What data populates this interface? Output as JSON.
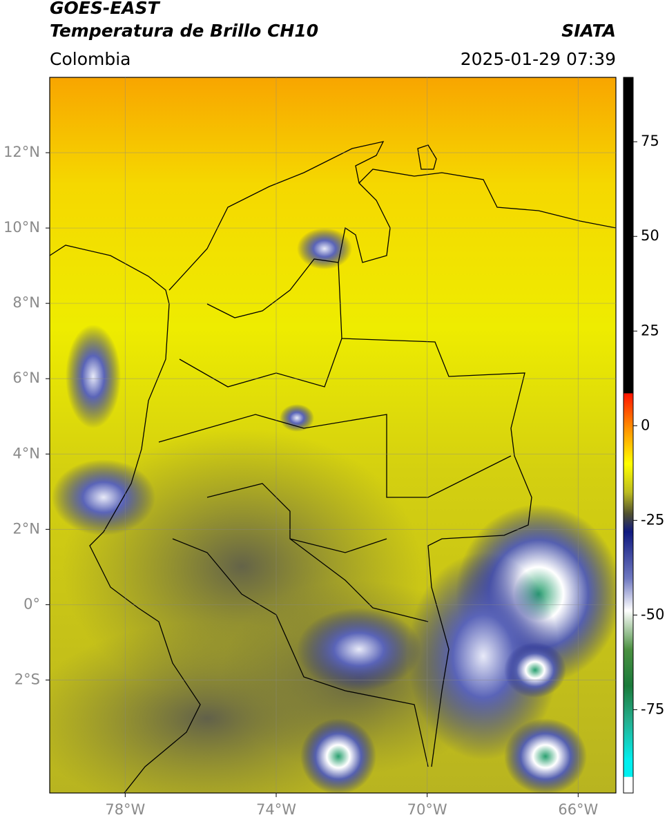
{
  "header": {
    "title_line1": "GOES-EAST",
    "title_line2": "Temperatura de Brillo CH10",
    "source": "SIATA",
    "region": "Colombia",
    "timestamp": "2025-01-29 07:39"
  },
  "map": {
    "xlim": [
      -80,
      -65
    ],
    "ylim": [
      -5,
      14
    ],
    "xticks": [
      {
        "value": -78,
        "label": "78°W"
      },
      {
        "value": -74,
        "label": "74°W"
      },
      {
        "value": -70,
        "label": "70°W"
      },
      {
        "value": -66,
        "label": "66°W"
      }
    ],
    "yticks": [
      {
        "value": 12,
        "label": "12°N"
      },
      {
        "value": 10,
        "label": "10°N"
      },
      {
        "value": 8,
        "label": "8°N"
      },
      {
        "value": 6,
        "label": "6°N"
      },
      {
        "value": 4,
        "label": "4°N"
      },
      {
        "value": 2,
        "label": "2°N"
      },
      {
        "value": 0,
        "label": "0°"
      },
      {
        "value": -2,
        "label": "2°S"
      }
    ],
    "grid": true
  },
  "colorbar": {
    "lim": [
      -97,
      92
    ],
    "ticks": [
      75,
      50,
      25,
      0,
      -25,
      -50,
      -75
    ]
  }
}
